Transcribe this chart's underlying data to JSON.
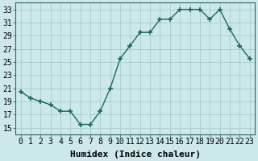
{
  "x": [
    0,
    1,
    2,
    3,
    4,
    5,
    6,
    7,
    8,
    9,
    10,
    11,
    12,
    13,
    14,
    15,
    16,
    17,
    18,
    19,
    20,
    21,
    22,
    23
  ],
  "y": [
    20.5,
    19.5,
    19.0,
    18.5,
    17.5,
    17.5,
    15.5,
    15.5,
    17.5,
    21.0,
    25.5,
    27.5,
    29.5,
    29.5,
    31.5,
    31.5,
    33.0,
    33.0,
    33.0,
    31.5,
    33.0,
    30.0,
    27.5,
    25.5
  ],
  "line_color": "#1a6b5a",
  "marker": "+",
  "marker_size": 4,
  "bg_color": "#cce8e8",
  "grid_color": "#aacccc",
  "xlabel": "Humidex (Indice chaleur)",
  "xlim": [
    -0.5,
    23.5
  ],
  "ylim": [
    14,
    34
  ],
  "yticks": [
    15,
    17,
    19,
    21,
    23,
    25,
    27,
    29,
    31,
    33
  ],
  "xticks": [
    0,
    1,
    2,
    3,
    4,
    5,
    6,
    7,
    8,
    9,
    10,
    11,
    12,
    13,
    14,
    15,
    16,
    17,
    18,
    19,
    20,
    21,
    22,
    23
  ],
  "xlabel_fontsize": 8,
  "tick_fontsize": 7
}
